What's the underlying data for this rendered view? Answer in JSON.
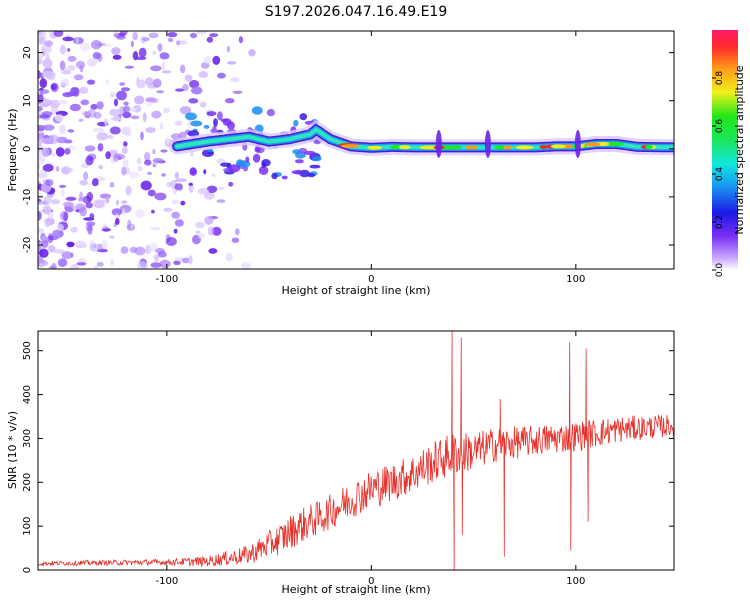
{
  "figure_title": "S197.2026.047.16.49.E19",
  "colors": {
    "snr_line": "#e8302a",
    "frame": "#000000",
    "background": "#ffffff",
    "ridge": "#1a9cf0",
    "ridge_core": "#e8302a",
    "noise": "#8a3cf0"
  },
  "chart_data": [
    {
      "type": "heatmap",
      "title": "S197.2026.047.16.49.E19",
      "xlabel": "Height of straight line (km)",
      "ylabel": "Frequency (Hz)",
      "xlim": [
        -163,
        148
      ],
      "ylim": [
        -25,
        24.5
      ],
      "xticks": [
        -100,
        0,
        100
      ],
      "xtick_labels": [
        "-100",
        "0",
        "100"
      ],
      "yticks": [
        20,
        10,
        0,
        -10,
        -20
      ],
      "ytick_labels": [
        "20",
        "10",
        "0",
        "-10",
        "-20"
      ],
      "colorbar": {
        "label": "Normalized spectral amplitude",
        "range": [
          0,
          1
        ],
        "ticks": [
          0.0,
          0.2,
          0.4,
          0.6,
          0.8
        ],
        "tick_labels": [
          "0.0",
          "0.2",
          "0.4",
          "0.6",
          "0.8"
        ]
      },
      "ridge_x": [
        -95,
        -80,
        -70,
        -60,
        -50,
        -40,
        -30,
        -27,
        -20,
        -10,
        0,
        10,
        20,
        30,
        40,
        50,
        60,
        70,
        80,
        90,
        100,
        110,
        120,
        130,
        148
      ],
      "ridge_y": [
        0.5,
        1.5,
        2,
        2.5,
        1.5,
        2,
        3,
        4,
        2,
        0.5,
        0.2,
        0.4,
        0.3,
        0.3,
        0.3,
        0.3,
        0.3,
        0.3,
        0.3,
        0.5,
        0.5,
        1,
        1,
        0.4,
        0.3
      ],
      "noise_region_x": [
        -163,
        -95
      ]
    },
    {
      "type": "line",
      "title": "",
      "xlabel": "Height of straight line (km)",
      "ylabel": "SNR (10 * v/v)",
      "xlim": [
        -163,
        148
      ],
      "ylim": [
        0,
        545
      ],
      "xticks": [
        -100,
        0,
        100
      ],
      "xtick_labels": [
        "-100",
        "0",
        "100"
      ],
      "yticks": [
        0,
        100,
        200,
        300,
        400,
        500
      ],
      "ytick_labels": [
        "0",
        "100",
        "200",
        "300",
        "400",
        "500"
      ],
      "trend_x": [
        -163,
        -100,
        -80,
        -60,
        -45,
        -35,
        -25,
        -10,
        0,
        10,
        20,
        30,
        40,
        50,
        60,
        80,
        100,
        120,
        148
      ],
      "trend_y": [
        15,
        18,
        20,
        35,
        70,
        100,
        120,
        160,
        185,
        200,
        220,
        245,
        265,
        270,
        285,
        295,
        305,
        320,
        330
      ],
      "noise_x": [
        -163,
        -100,
        -80,
        -60,
        -40,
        -20,
        0,
        20,
        40,
        60,
        80,
        100,
        148
      ],
      "noise_amp": [
        5,
        7,
        12,
        22,
        40,
        40,
        45,
        45,
        50,
        40,
        35,
        35,
        25
      ],
      "spikes": [
        {
          "x": 39.5,
          "y": 545
        },
        {
          "x": 40.5,
          "y": 0
        },
        {
          "x": 44,
          "y": 530
        },
        {
          "x": 44.5,
          "y": 80
        },
        {
          "x": 63,
          "y": 390
        },
        {
          "x": 65,
          "y": 30
        },
        {
          "x": 97,
          "y": 520
        },
        {
          "x": 97.5,
          "y": 45
        },
        {
          "x": 105,
          "y": 505
        },
        {
          "x": 106,
          "y": 110
        }
      ]
    }
  ]
}
